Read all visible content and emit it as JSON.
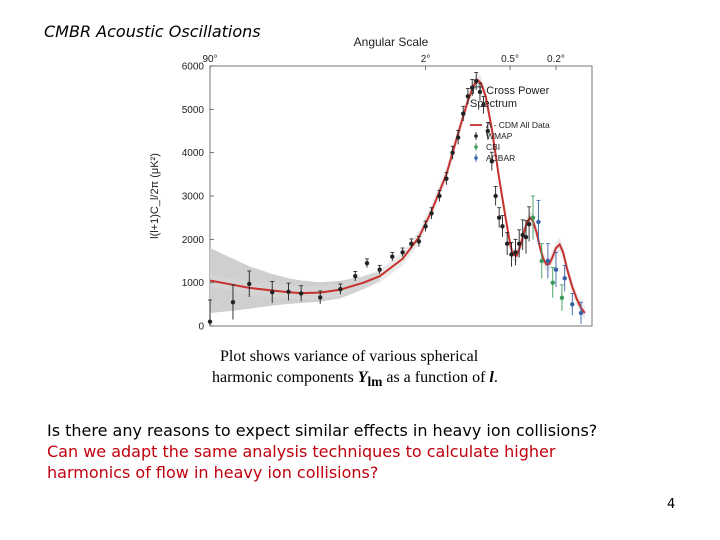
{
  "slide": {
    "title": "CMBR Acoustic Oscillations",
    "caption": {
      "line1": "Plot shows variance of various spherical",
      "line2_prefix": "harmonic components ",
      "symbol": "Y",
      "subscript": "lm",
      "line2_mid": " as a function of ",
      "var": "l",
      "line2_suffix": "."
    },
    "question1": "Is there any reasons to expect similar effects in heavy ion collisions?",
    "question2": "Can we adapt the same analysis techniques to calculate higher harmonics of flow in heavy ion collisions?",
    "page_number": "4"
  },
  "chart_data": {
    "type": "scatter",
    "top_axis_title": "Angular Scale",
    "top_tick_labels": [
      "90°",
      "2°",
      "0.5°",
      "0.2°"
    ],
    "top_tick_positions_l": [
      2,
      90,
      400,
      900
    ],
    "ylabel": "l(l+1)C_l/2π (μK²)",
    "ylim": [
      0,
      6000
    ],
    "yticks": [
      0,
      1000,
      2000,
      3000,
      4000,
      5000,
      6000
    ],
    "xscale": "log",
    "xlim": [
      2,
      1700
    ],
    "legend_title": [
      "TT Cross Power",
      "Spectrum"
    ],
    "legend": [
      {
        "name": "Λ - CDM All Data",
        "color": "#c8322e",
        "marker": "line"
      },
      {
        "name": "WMAP",
        "color": "#222222",
        "marker": "errorbar"
      },
      {
        "name": "CBI",
        "color": "#3a9a5a",
        "marker": "errorbar"
      },
      {
        "name": "ACBAR",
        "color": "#3560a8",
        "marker": "errorbar"
      }
    ],
    "model": {
      "name": "Λ - CDM All Data",
      "color": "#c8322e",
      "l": [
        2,
        3,
        4,
        6,
        8,
        10,
        14,
        20,
        30,
        40,
        60,
        80,
        100,
        130,
        160,
        190,
        210,
        225,
        240,
        260,
        290,
        330,
        370,
        400,
        420,
        450,
        480,
        510,
        540,
        570,
        600,
        640,
        680,
        720,
        760,
        800,
        850,
        900,
        960,
        1020,
        1100,
        1200,
        1300,
        1400,
        1500
      ],
      "values": [
        1050,
        950,
        880,
        820,
        780,
        760,
        770,
        840,
        1000,
        1150,
        1550,
        2050,
        2650,
        3500,
        4450,
        5200,
        5550,
        5680,
        5600,
        5300,
        4550,
        3400,
        2500,
        1900,
        1650,
        1620,
        1850,
        2150,
        2400,
        2500,
        2420,
        2150,
        1800,
        1550,
        1420,
        1430,
        1600,
        1800,
        1880,
        1700,
        1300,
        900,
        620,
        420,
        300
      ]
    },
    "variance_band": {
      "l": [
        2,
        3,
        4,
        6,
        8,
        10,
        14,
        20,
        30,
        40
      ],
      "upper": [
        1800,
        1550,
        1380,
        1200,
        1100,
        1050,
        1010,
        1040,
        1150,
        1250
      ],
      "lower": [
        300,
        350,
        400,
        470,
        510,
        530,
        560,
        640,
        850,
        1050
      ]
    },
    "series": [
      {
        "name": "WMAP",
        "color": "#222222",
        "l": [
          2,
          3,
          4,
          6,
          8,
          10,
          14,
          20,
          26,
          32,
          40,
          50,
          60,
          70,
          80,
          90,
          100,
          115,
          130,
          145,
          160,
          175,
          190,
          205,
          220,
          235,
          250,
          270,
          290,
          310,
          330,
          350,
          380,
          410,
          440,
          470,
          500,
          530,
          560
        ],
        "values": [
          100,
          550,
          970,
          780,
          790,
          750,
          660,
          850,
          1150,
          1450,
          1300,
          1600,
          1700,
          1900,
          1950,
          2300,
          2600,
          3000,
          3400,
          4000,
          4350,
          4900,
          5300,
          5500,
          5650,
          5400,
          5100,
          4500,
          3800,
          3000,
          2500,
          2300,
          1900,
          1650,
          1700,
          1900,
          2100,
          2050,
          2350
        ],
        "err": [
          500,
          400,
          300,
          250,
          200,
          180,
          150,
          120,
          110,
          100,
          100,
          100,
          100,
          110,
          120,
          120,
          130,
          130,
          140,
          150,
          160,
          170,
          180,
          190,
          200,
          200,
          200,
          200,
          210,
          220,
          230,
          250,
          260,
          280,
          300,
          320,
          350,
          380,
          400
        ]
      },
      {
        "name": "CBI",
        "color": "#3a9a5a",
        "l": [
          600,
          700,
          850,
          1000
        ],
        "values": [
          2500,
          1500,
          1000,
          650
        ],
        "err": [
          500,
          400,
          350,
          300
        ]
      },
      {
        "name": "ACBAR",
        "color": "#3560a8",
        "l": [
          660,
          780,
          900,
          1050,
          1200,
          1400
        ],
        "values": [
          2400,
          1500,
          1300,
          1100,
          500,
          300
        ],
        "err": [
          500,
          400,
          400,
          300,
          250,
          250
        ]
      }
    ]
  }
}
